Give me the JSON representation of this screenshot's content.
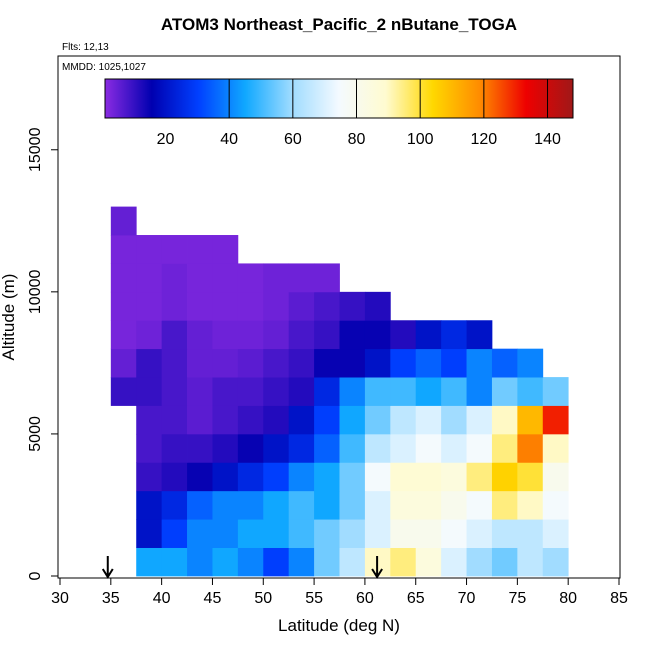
{
  "chart_data": {
    "type": "heatmap",
    "title": "ATOM3 Northeast_Pacific_2 nButane_TOGA",
    "annotations": [
      "Flts: 12,13",
      "MMDD: 1025,1027"
    ],
    "xlabel": "Latitude (deg N)",
    "ylabel": "Altitude (m)",
    "xlim": [
      30,
      85
    ],
    "xticks": [
      30,
      35,
      40,
      45,
      50,
      55,
      60,
      65,
      70,
      75,
      80,
      85
    ],
    "ylim": [
      0,
      18300
    ],
    "yticks": [
      0,
      5000,
      10000,
      15000
    ],
    "x_edges": [
      35,
      37.5,
      40,
      42.5,
      45,
      47.5,
      50,
      52.5,
      55,
      57.5,
      60,
      62.5,
      65,
      67.5,
      70,
      72.5,
      75,
      77.5,
      80
    ],
    "y_edges": [
      0,
      1000,
      2000,
      3000,
      4000,
      5000,
      6000,
      7000,
      8000,
      9000,
      10000,
      11000,
      12000,
      13000
    ],
    "values": [
      [
        null,
        45,
        45,
        40,
        45,
        40,
        30,
        40,
        55,
        65,
        90,
        95,
        85,
        70,
        60,
        55,
        65,
        60
      ],
      [
        null,
        20,
        30,
        40,
        40,
        45,
        45,
        50,
        55,
        60,
        70,
        80,
        80,
        75,
        70,
        65,
        65,
        70
      ],
      [
        null,
        20,
        25,
        35,
        40,
        40,
        45,
        50,
        45,
        55,
        70,
        85,
        85,
        80,
        75,
        95,
        90,
        75
      ],
      [
        null,
        10,
        12,
        15,
        20,
        25,
        30,
        40,
        45,
        55,
        75,
        88,
        88,
        85,
        95,
        105,
        100,
        80
      ],
      [
        null,
        8,
        10,
        10,
        12,
        15,
        20,
        25,
        35,
        50,
        65,
        70,
        75,
        70,
        75,
        95,
        120,
        90
      ],
      [
        null,
        8,
        8,
        6,
        8,
        10,
        12,
        20,
        30,
        45,
        55,
        65,
        70,
        60,
        70,
        90,
        110,
        130
      ],
      [
        10,
        10,
        8,
        6,
        8,
        8,
        10,
        12,
        25,
        40,
        50,
        50,
        45,
        50,
        40,
        55,
        50,
        55
      ],
      [
        5,
        10,
        8,
        5,
        5,
        6,
        8,
        10,
        15,
        15,
        20,
        30,
        35,
        30,
        40,
        35,
        40,
        null
      ],
      [
        3,
        4,
        8,
        5,
        4,
        4,
        5,
        8,
        10,
        15,
        15,
        12,
        20,
        25,
        20,
        null,
        null,
        null
      ],
      [
        3,
        3,
        4,
        3,
        3,
        3,
        4,
        6,
        8,
        10,
        12,
        null,
        null,
        null,
        null,
        null,
        null,
        null
      ],
      [
        3,
        3,
        4,
        3,
        3,
        3,
        4,
        4,
        4,
        null,
        null,
        null,
        null,
        null,
        null,
        null,
        null,
        null
      ],
      [
        3,
        3,
        3,
        3,
        3,
        null,
        null,
        null,
        null,
        null,
        null,
        null,
        null,
        null,
        null,
        null,
        null,
        null
      ],
      [
        5,
        null,
        null,
        null,
        null,
        null,
        null,
        null,
        null,
        null,
        null,
        null,
        null,
        null,
        null,
        null,
        null,
        null
      ]
    ],
    "arrows": [
      34.7,
      61.2
    ],
    "colorscale": {
      "range": [
        1,
        148
      ],
      "ticks": [
        20,
        40,
        60,
        80,
        100,
        120,
        140
      ],
      "colors": [
        "#8a2be2",
        "#0000b0",
        "#0040ff",
        "#10a8ff",
        "#a0dcff",
        "#f4faff",
        "#fffbd0",
        "#ffd800",
        "#ff8c00",
        "#ee0000",
        "#a01818"
      ]
    }
  }
}
